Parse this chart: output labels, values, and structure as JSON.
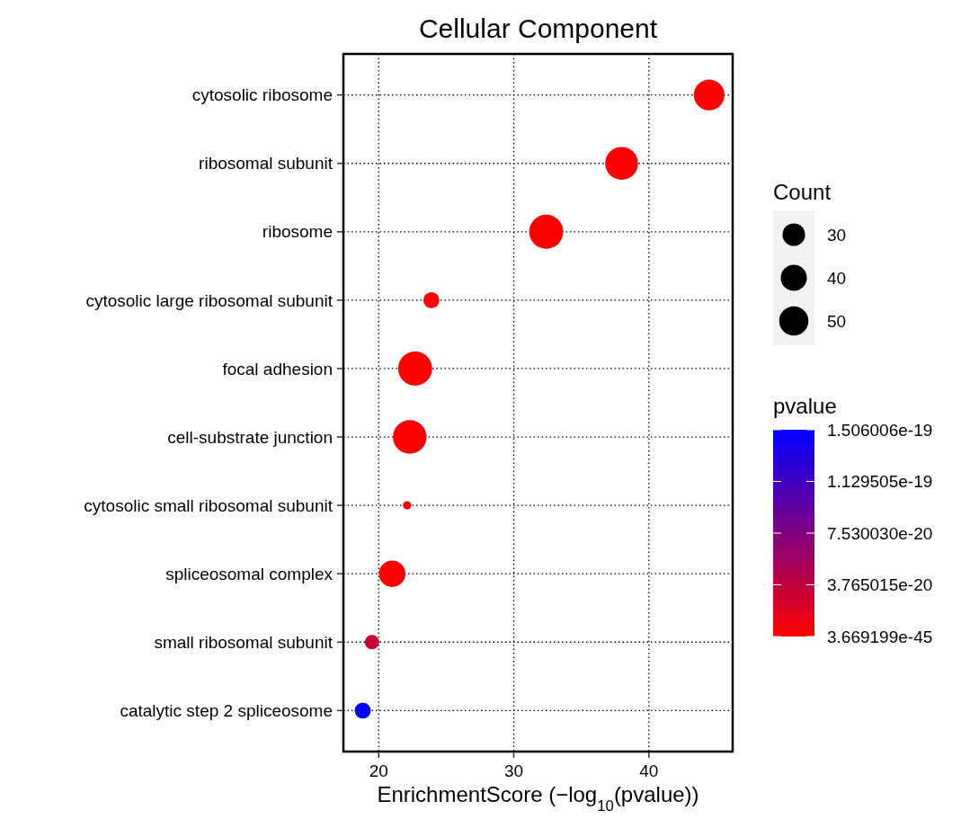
{
  "chart_data": {
    "type": "bubble",
    "title": "Cellular Component",
    "xlabel": "EnrichmentScore (−log$_{10}$(pvalue))",
    "orientation": "horizontal",
    "categories": [
      "cytosolic ribosome",
      "ribosomal subunit",
      "ribosome",
      "cytosolic large ribosomal subunit",
      "focal adhesion",
      "cell-substrate junction",
      "cytosolic small ribosomal subunit",
      "spliceosomal complex",
      "small ribosomal subunit",
      "catalytic step 2 spliceosome"
    ],
    "values": [
      44.46,
      37.98,
      32.4,
      23.9,
      22.7,
      22.3,
      22.1,
      21.0,
      19.5,
      18.82
    ],
    "sizes": [
      55,
      63,
      68,
      15,
      68,
      66,
      4,
      41,
      12,
      15
    ],
    "size_legend": [
      30,
      40,
      50
    ],
    "legend_title": "Count",
    "cvalues": [
      3.669199e-45,
      1e-38,
      4e-33,
      1.3e-24,
      2e-23,
      5e-23,
      8e-23,
      1e-21,
      3.2e-20,
      1.506006e-19
    ],
    "clabel": "pvalue",
    "clim": [
      3.669199e-45,
      1.506006e-19
    ],
    "cticks": [
      {
        "value": 3.669199e-45,
        "label": "3.669199e-45"
      },
      {
        "value": 3.765015e-20,
        "label": "3.765015e-20"
      },
      {
        "value": 7.53003e-20,
        "label": "7.530030e-20"
      },
      {
        "value": 1.129505e-19,
        "label": "1.129505e-19"
      },
      {
        "value": 1.506006e-19,
        "label": "1.506006e-19"
      }
    ],
    "xlim": [
      17.39,
      46.2
    ],
    "xticks": [
      20,
      30,
      40
    ],
    "grid": true
  }
}
